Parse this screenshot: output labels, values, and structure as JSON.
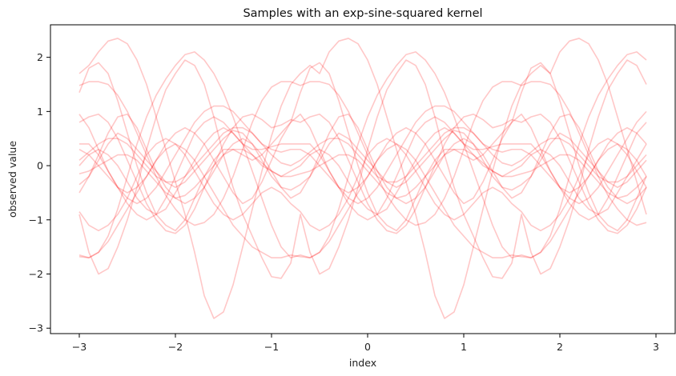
{
  "chart_data": {
    "type": "line",
    "title": "Samples with an exp-sine-squared kernel",
    "xlabel": "index",
    "ylabel": "observed value",
    "xlim": [
      -3.3,
      3.2
    ],
    "ylim": [
      -3.1,
      2.6
    ],
    "xticks": [
      -3,
      -2,
      -1,
      0,
      1,
      2,
      3
    ],
    "xtick_labels": [
      "−3",
      "−2",
      "−1",
      "0",
      "1",
      "2",
      "3"
    ],
    "yticks": [
      -3,
      -2,
      -1,
      0,
      1,
      2
    ],
    "ytick_labels": [
      "−3",
      "−2",
      "−1",
      "0",
      "1",
      "2"
    ],
    "grid": false,
    "line_color": "#ff0000",
    "line_opacity": 0.22,
    "period": 3.0,
    "x": [
      -3.0,
      -2.9,
      -2.8,
      -2.7,
      -2.6,
      -2.5,
      -2.4,
      -2.3,
      -2.2,
      -2.1,
      -2.0,
      -1.9,
      -1.8,
      -1.7,
      -1.6,
      -1.5,
      -1.4,
      -1.3,
      -1.2,
      -1.1,
      -1.0,
      -0.9,
      -0.8,
      -0.7,
      -0.6,
      -0.5,
      -0.4,
      -0.3,
      -0.2,
      -0.1,
      0.0,
      0.1,
      0.2,
      0.3,
      0.4,
      0.5,
      0.6,
      0.7,
      0.8,
      0.9,
      1.0,
      1.1,
      1.2,
      1.3,
      1.4,
      1.5,
      1.6,
      1.7,
      1.8,
      1.9,
      2.0,
      2.1,
      2.2,
      2.3,
      2.4,
      2.5,
      2.6,
      2.7,
      2.8,
      2.9
    ],
    "series": [
      {
        "values": [
          1.7,
          1.85,
          2.1,
          2.3,
          2.35,
          2.25,
          1.95,
          1.5,
          0.9,
          0.3,
          -0.3,
          -0.9,
          -1.6,
          -2.4,
          -2.82,
          -2.7,
          -2.2,
          -1.5,
          -0.8,
          -0.1,
          0.55,
          1.1,
          1.5,
          1.7,
          1.85,
          1.7,
          2.1,
          2.3,
          2.35,
          2.25,
          1.95,
          1.5,
          0.9,
          0.3,
          -0.3,
          -0.9,
          -1.6,
          -2.4,
          -2.82,
          -2.7,
          -2.2,
          -1.5,
          -0.8,
          -0.1,
          0.55,
          1.1,
          1.5,
          1.7,
          1.85,
          1.7,
          2.1,
          2.3,
          2.35,
          2.25,
          1.95,
          1.5,
          0.9,
          0.3,
          -0.3,
          -0.9
        ]
      },
      {
        "values": [
          -1.65,
          -1.7,
          -1.6,
          -1.3,
          -0.8,
          -0.2,
          0.4,
          0.9,
          1.3,
          1.6,
          1.85,
          2.05,
          2.1,
          1.95,
          1.7,
          1.35,
          0.9,
          0.4,
          -0.1,
          -0.6,
          -1.1,
          -1.5,
          -1.7,
          -1.65,
          -1.7,
          -1.6,
          -1.3,
          -0.8,
          -0.2,
          0.4,
          0.9,
          1.3,
          1.6,
          1.85,
          2.05,
          2.1,
          1.95,
          1.7,
          1.35,
          0.9,
          0.4,
          -0.1,
          -0.6,
          -1.1,
          -1.5,
          -1.7,
          -1.65,
          -1.7,
          -1.6,
          -1.3,
          -0.8,
          -0.2,
          0.4,
          0.9,
          1.3,
          1.6,
          1.85,
          2.05,
          2.1,
          1.95
        ]
      },
      {
        "values": [
          -0.9,
          -1.6,
          -2.0,
          -1.9,
          -1.5,
          -1.0,
          -0.4,
          0.3,
          0.9,
          1.4,
          1.7,
          1.95,
          1.85,
          1.5,
          0.9,
          0.2,
          -0.4,
          -0.9,
          -1.3,
          -1.7,
          -2.05,
          -2.08,
          -1.8,
          -0.9,
          -1.6,
          -2.0,
          -1.9,
          -1.5,
          -1.0,
          -0.4,
          0.3,
          0.9,
          1.4,
          1.7,
          1.95,
          1.85,
          1.5,
          0.9,
          0.2,
          -0.4,
          -0.9,
          -1.3,
          -1.7,
          -2.05,
          -2.08,
          -1.8,
          -0.9,
          -1.6,
          -2.0,
          -1.9,
          -1.5,
          -1.0,
          -0.4,
          0.3,
          0.9,
          1.4,
          1.7,
          1.95,
          1.85,
          1.5
        ]
      },
      {
        "values": [
          1.48,
          1.55,
          1.55,
          1.5,
          1.3,
          1.0,
          0.6,
          0.2,
          -0.2,
          -0.55,
          -0.8,
          -1.0,
          -1.1,
          -1.05,
          -0.9,
          -0.6,
          -0.2,
          0.3,
          0.8,
          1.2,
          1.45,
          1.55,
          1.55,
          1.48,
          1.55,
          1.55,
          1.5,
          1.3,
          1.0,
          0.6,
          0.2,
          -0.2,
          -0.55,
          -0.8,
          -1.0,
          -1.1,
          -1.05,
          -0.9,
          -0.6,
          -0.2,
          0.3,
          0.8,
          1.2,
          1.45,
          1.55,
          1.55,
          1.48,
          1.55,
          1.55,
          1.5,
          1.3,
          1.0,
          0.6,
          0.2,
          -0.2,
          -0.55,
          -0.8,
          -1.0,
          -1.1,
          -1.05
        ]
      },
      {
        "values": [
          0.8,
          0.9,
          0.95,
          0.8,
          0.5,
          0.1,
          -0.3,
          -0.7,
          -1.0,
          -1.2,
          -1.25,
          -1.1,
          -0.8,
          -0.4,
          0.0,
          0.4,
          0.7,
          0.9,
          0.95,
          0.85,
          0.7,
          0.75,
          0.85,
          0.8,
          0.9,
          0.95,
          0.8,
          0.5,
          0.1,
          -0.3,
          -0.7,
          -1.0,
          -1.2,
          -1.25,
          -1.1,
          -0.8,
          -0.4,
          0.0,
          0.4,
          0.7,
          0.9,
          0.95,
          0.85,
          0.7,
          0.75,
          0.85,
          0.8,
          0.9,
          0.95,
          0.8,
          0.5,
          0.1,
          -0.3,
          -0.7,
          -1.0,
          -1.2,
          -1.25,
          -1.1,
          -0.8,
          -0.4
        ]
      },
      {
        "values": [
          0.3,
          0.2,
          0.0,
          -0.2,
          -0.4,
          -0.6,
          -0.7,
          -0.6,
          -0.4,
          -0.1,
          0.2,
          0.5,
          0.8,
          1.0,
          1.1,
          1.1,
          1.0,
          0.8,
          0.6,
          0.4,
          0.3,
          0.25,
          0.3,
          0.3,
          0.2,
          0.0,
          -0.2,
          -0.4,
          -0.6,
          -0.7,
          -0.6,
          -0.4,
          -0.1,
          0.2,
          0.5,
          0.8,
          1.0,
          1.1,
          1.1,
          1.0,
          0.8,
          0.6,
          0.4,
          0.3,
          0.25,
          0.3,
          0.3,
          0.2,
          0.0,
          -0.2,
          -0.4,
          -0.6,
          -0.7,
          -0.6,
          -0.4,
          -0.1,
          0.2,
          0.5,
          0.8,
          1.0
        ]
      },
      {
        "values": [
          -0.35,
          -0.2,
          0.1,
          0.4,
          0.6,
          0.5,
          0.3,
          0.1,
          -0.1,
          -0.3,
          -0.4,
          -0.3,
          -0.1,
          0.1,
          0.3,
          0.5,
          0.65,
          0.6,
          0.4,
          0.1,
          -0.2,
          -0.4,
          -0.45,
          -0.35,
          -0.2,
          0.1,
          0.4,
          0.6,
          0.5,
          0.3,
          0.1,
          -0.1,
          -0.3,
          -0.4,
          -0.3,
          -0.1,
          0.1,
          0.3,
          0.5,
          0.65,
          0.6,
          0.4,
          0.1,
          -0.2,
          -0.4,
          -0.45,
          -0.35,
          -0.2,
          0.1,
          0.4,
          0.6,
          0.5,
          0.3,
          0.1,
          -0.1,
          -0.3,
          -0.4,
          -0.3,
          -0.1,
          0.1
        ]
      },
      {
        "values": [
          -0.5,
          -0.2,
          0.2,
          0.6,
          0.9,
          0.95,
          0.7,
          0.3,
          -0.1,
          -0.4,
          -0.6,
          -0.7,
          -0.6,
          -0.4,
          -0.1,
          0.2,
          0.4,
          0.5,
          0.4,
          0.2,
          -0.1,
          -0.4,
          -0.6,
          -0.5,
          -0.2,
          0.2,
          0.6,
          0.9,
          0.95,
          0.7,
          0.3,
          -0.1,
          -0.4,
          -0.6,
          -0.7,
          -0.6,
          -0.4,
          -0.1,
          0.2,
          0.4,
          0.5,
          0.4,
          0.2,
          -0.1,
          -0.4,
          -0.6,
          -0.5,
          -0.2,
          0.2,
          0.6,
          0.9,
          0.95,
          0.7,
          0.3,
          -0.1,
          -0.4,
          -0.6,
          -0.7,
          -0.6,
          -0.4
        ]
      },
      {
        "values": [
          0.0,
          0.2,
          0.3,
          0.2,
          0.0,
          -0.3,
          -0.6,
          -0.8,
          -0.9,
          -0.8,
          -0.5,
          -0.2,
          0.1,
          0.4,
          0.6,
          0.7,
          0.6,
          0.4,
          0.2,
          0.0,
          -0.1,
          -0.2,
          -0.1,
          0.0,
          0.2,
          0.3,
          0.2,
          0.0,
          -0.3,
          -0.6,
          -0.8,
          -0.9,
          -0.8,
          -0.5,
          -0.2,
          0.1,
          0.4,
          0.6,
          0.7,
          0.6,
          0.4,
          0.2,
          0.0,
          -0.1,
          -0.2,
          -0.1,
          0.0,
          0.2,
          0.3,
          0.2,
          0.0,
          -0.3,
          -0.6,
          -0.8,
          -0.9,
          -0.8,
          -0.5,
          -0.2,
          0.1,
          0.4
        ]
      },
      {
        "values": [
          0.4,
          0.4,
          0.2,
          -0.1,
          -0.4,
          -0.7,
          -0.9,
          -1.0,
          -0.9,
          -0.6,
          -0.2,
          0.2,
          0.6,
          0.8,
          0.9,
          0.8,
          0.6,
          0.4,
          0.3,
          0.3,
          0.35,
          0.4,
          0.4,
          0.4,
          0.4,
          0.2,
          -0.1,
          -0.4,
          -0.7,
          -0.9,
          -1.0,
          -0.9,
          -0.6,
          -0.2,
          0.2,
          0.6,
          0.8,
          0.9,
          0.8,
          0.6,
          0.4,
          0.3,
          0.3,
          0.35,
          0.4,
          0.4,
          0.4,
          0.4,
          0.2,
          -0.1,
          -0.4,
          -0.7,
          -0.9,
          -1.0,
          -0.9,
          -0.6,
          -0.2,
          0.2,
          0.6,
          0.8
        ]
      },
      {
        "values": [
          1.35,
          1.8,
          1.9,
          1.7,
          1.2,
          0.6,
          0.0,
          -0.5,
          -0.9,
          -1.1,
          -1.2,
          -1.0,
          -0.6,
          -0.2,
          0.1,
          0.3,
          0.3,
          0.2,
          0.1,
          0.2,
          0.4,
          0.6,
          0.8,
          1.35,
          1.8,
          1.9,
          1.7,
          1.2,
          0.6,
          0.0,
          -0.5,
          -0.9,
          -1.1,
          -1.2,
          -1.0,
          -0.6,
          -0.2,
          0.1,
          0.3,
          0.3,
          0.2,
          0.1,
          0.2,
          0.4,
          0.6,
          0.8,
          1.35,
          1.8,
          1.9,
          1.7,
          1.2,
          0.6,
          0.0,
          -0.5,
          -0.9,
          -1.1,
          -1.2,
          -1.0,
          -0.6,
          -0.2
        ]
      },
      {
        "values": [
          -0.85,
          -1.1,
          -1.2,
          -1.1,
          -0.9,
          -0.6,
          -0.2,
          0.2,
          0.4,
          0.5,
          0.4,
          0.2,
          -0.1,
          -0.4,
          -0.7,
          -0.9,
          -1.0,
          -0.9,
          -0.7,
          -0.5,
          -0.4,
          -0.5,
          -0.7,
          -0.85,
          -1.1,
          -1.2,
          -1.1,
          -0.9,
          -0.6,
          -0.2,
          0.2,
          0.4,
          0.5,
          0.4,
          0.2,
          -0.1,
          -0.4,
          -0.7,
          -0.9,
          -1.0,
          -0.9,
          -0.7,
          -0.5,
          -0.4,
          -0.5,
          -0.7,
          -0.85,
          -1.1,
          -1.2,
          -1.1,
          -0.9,
          -0.6,
          -0.2,
          0.2,
          0.4,
          0.5,
          0.4,
          0.2,
          -0.1,
          -0.4
        ]
      },
      {
        "values": [
          0.1,
          0.25,
          0.4,
          0.5,
          0.5,
          0.4,
          0.2,
          0.0,
          -0.2,
          -0.3,
          -0.3,
          -0.2,
          0.0,
          0.2,
          0.4,
          0.6,
          0.7,
          0.7,
          0.6,
          0.4,
          0.2,
          0.05,
          0.0,
          0.1,
          0.25,
          0.4,
          0.5,
          0.5,
          0.4,
          0.2,
          0.0,
          -0.2,
          -0.3,
          -0.3,
          -0.2,
          0.0,
          0.2,
          0.4,
          0.6,
          0.7,
          0.7,
          0.6,
          0.4,
          0.2,
          0.05,
          0.0,
          0.1,
          0.25,
          0.4,
          0.5,
          0.5,
          0.4,
          0.2,
          0.0,
          -0.2,
          -0.3,
          -0.3,
          -0.2,
          0.0,
          0.2
        ]
      },
      {
        "values": [
          -1.68,
          -1.7,
          -1.6,
          -1.4,
          -1.1,
          -0.8,
          -0.5,
          -0.2,
          0.1,
          0.3,
          0.4,
          0.3,
          0.1,
          -0.2,
          -0.5,
          -0.8,
          -1.1,
          -1.3,
          -1.5,
          -1.6,
          -1.7,
          -1.7,
          -1.65,
          -1.68,
          -1.7,
          -1.6,
          -1.4,
          -1.1,
          -0.8,
          -0.5,
          -0.2,
          0.1,
          0.3,
          0.4,
          0.3,
          0.1,
          -0.2,
          -0.5,
          -0.8,
          -1.1,
          -1.3,
          -1.5,
          -1.6,
          -1.7,
          -1.7,
          -1.65,
          -1.68,
          -1.7,
          -1.6,
          -1.4,
          -1.1,
          -0.8,
          -0.5,
          -0.2,
          0.1,
          0.3,
          0.4,
          0.3,
          0.1,
          -0.2
        ]
      },
      {
        "values": [
          0.95,
          0.7,
          0.3,
          -0.1,
          -0.4,
          -0.5,
          -0.4,
          -0.2,
          0.1,
          0.4,
          0.6,
          0.7,
          0.6,
          0.4,
          0.1,
          -0.2,
          -0.5,
          -0.7,
          -0.6,
          -0.3,
          0.1,
          0.5,
          0.8,
          0.95,
          0.7,
          0.3,
          -0.1,
          -0.4,
          -0.5,
          -0.4,
          -0.2,
          0.1,
          0.4,
          0.6,
          0.7,
          0.6,
          0.4,
          0.1,
          -0.2,
          -0.5,
          -0.7,
          -0.6,
          -0.3,
          0.1,
          0.5,
          0.8,
          0.95,
          0.7,
          0.3,
          -0.1,
          -0.4,
          -0.5,
          -0.4,
          -0.2,
          0.1,
          0.4,
          0.6,
          0.7,
          0.6,
          0.4
        ]
      },
      {
        "values": [
          -0.15,
          -0.1,
          0.0,
          0.1,
          0.2,
          0.2,
          0.1,
          -0.1,
          -0.3,
          -0.5,
          -0.6,
          -0.55,
          -0.4,
          -0.2,
          0.0,
          0.2,
          0.3,
          0.3,
          0.2,
          0.05,
          -0.1,
          -0.2,
          -0.2,
          -0.15,
          -0.1,
          0.0,
          0.1,
          0.2,
          0.2,
          0.1,
          -0.1,
          -0.3,
          -0.5,
          -0.6,
          -0.55,
          -0.4,
          -0.2,
          0.0,
          0.2,
          0.3,
          0.3,
          0.2,
          0.05,
          -0.1,
          -0.2,
          -0.2,
          -0.15,
          -0.1,
          0.0,
          0.1,
          0.2,
          0.2,
          0.1,
          -0.1,
          -0.3,
          -0.5,
          -0.6,
          -0.55,
          -0.4,
          -0.2
        ]
      }
    ]
  }
}
